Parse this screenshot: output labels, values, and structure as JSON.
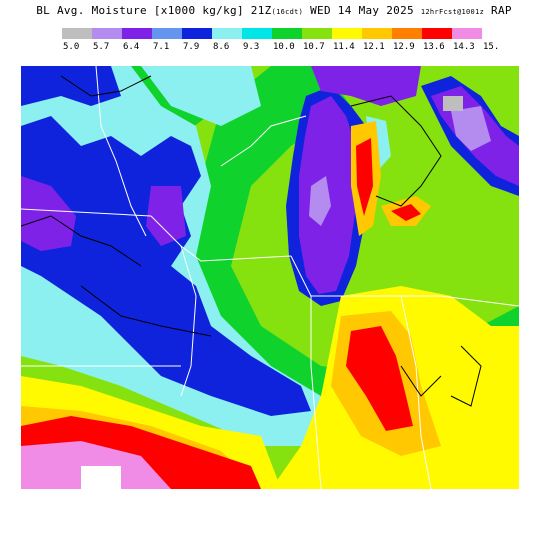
{
  "title": {
    "main": "BL Avg. Moisture [x1000 kg/kg] 21Z",
    "small_valid": "(16cdt)",
    "date": "WED 14 May 2025",
    "small_run": "12hrFcst@1001z",
    "model": "RAP"
  },
  "legend": {
    "colors": [
      "#bebebe",
      "#b48cf0",
      "#7f22e8",
      "#6496f0",
      "#0f23dc",
      "#8cf0f0",
      "#00e6e6",
      "#10d22c",
      "#86e20f",
      "#fffa00",
      "#ffc800",
      "#ff8000",
      "#ff0000",
      "#f08ce6"
    ],
    "labels": [
      "5.0",
      "5.7",
      "6.4",
      "7.1",
      "7.9",
      "8.6",
      "9.3",
      "10.0",
      "10.7",
      "11.4",
      "12.1",
      "12.9",
      "13.6",
      "14.3",
      "15."
    ]
  },
  "map": {
    "description_colors": {
      "light_green": "#86e20f",
      "green": "#10d22c",
      "cyan": "#8cf0f0",
      "blue": "#0f23dc",
      "purple": "#7f22e8",
      "lavender": "#b48cf0",
      "yellow": "#fffa00",
      "orange": "#ffc800",
      "red": "#ff0000",
      "pink": "#f08ce6",
      "gray": "#bebebe"
    }
  }
}
